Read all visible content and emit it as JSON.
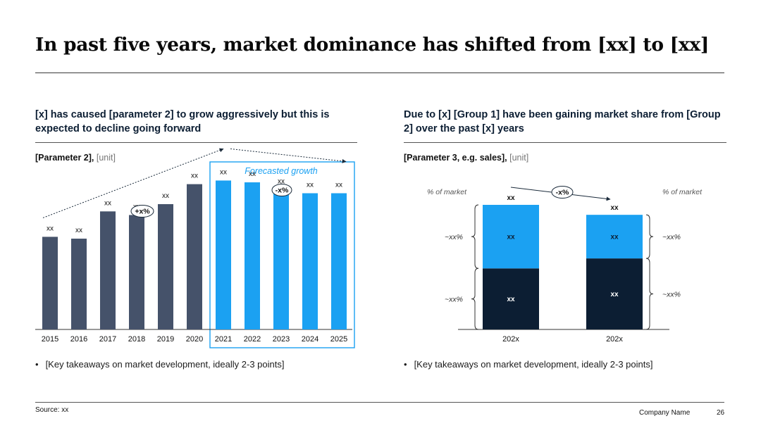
{
  "page": {
    "title": "In past five years, market dominance has shifted from [xx] to [xx]",
    "source": "Source: xx",
    "company": "Company Name",
    "page_number": "26"
  },
  "left": {
    "headline": "[x] has caused [parameter 2] to grow aggressively but this is expected to decline going forward",
    "param_bold": "[Parameter 2],",
    "param_unit": "[unit]",
    "bullet": "[Key takeaways on market development, ideally 2-3 points]"
  },
  "right": {
    "headline": "Due to [x] [Group 1] have been gaining market share from [Group 2] over the past [x] years",
    "param_bold": "[Parameter 3, e.g. sales],",
    "param_unit": "[unit]",
    "bullet": "[Key takeaways on market development, ideally 2-3 points]"
  },
  "colors": {
    "historic": "#45526a",
    "forecast": "#1ba1f2",
    "dark": "#0c1e33",
    "text": "#111111"
  },
  "chart_data": [
    {
      "type": "bar",
      "categories": [
        "2015",
        "2016",
        "2017",
        "2018",
        "2019",
        "2020",
        "2021",
        "2022",
        "2023",
        "2024",
        "2025"
      ],
      "values": [
        51,
        50,
        65,
        63,
        69,
        80,
        82,
        81,
        77,
        75,
        75
      ],
      "labels": [
        "xx",
        "xx",
        "xx",
        "xx",
        "xx",
        "xx",
        "xx",
        "xx",
        "xx",
        "xx",
        "xx"
      ],
      "forecast_from": "2021",
      "forecast_label": "Forecasted growth",
      "growth_label": "+x%",
      "decline_label": "-x%",
      "ylim": [
        0,
        100
      ]
    },
    {
      "type": "stacked-bar",
      "categories": [
        "202x",
        "202x"
      ],
      "series": [
        {
          "name": "Group 2",
          "values": [
            49,
            57
          ],
          "labels": [
            "xx",
            "xx"
          ]
        },
        {
          "name": "Group 1",
          "values": [
            51,
            35
          ],
          "labels": [
            "xx",
            "xx"
          ]
        }
      ],
      "totals": [
        "xx",
        "xx"
      ],
      "axis_note": "% of market",
      "share_labels": {
        "top": "~xx%",
        "bottom": "~xx%"
      },
      "change_label": "-x%",
      "ylim": [
        0,
        100
      ]
    }
  ]
}
